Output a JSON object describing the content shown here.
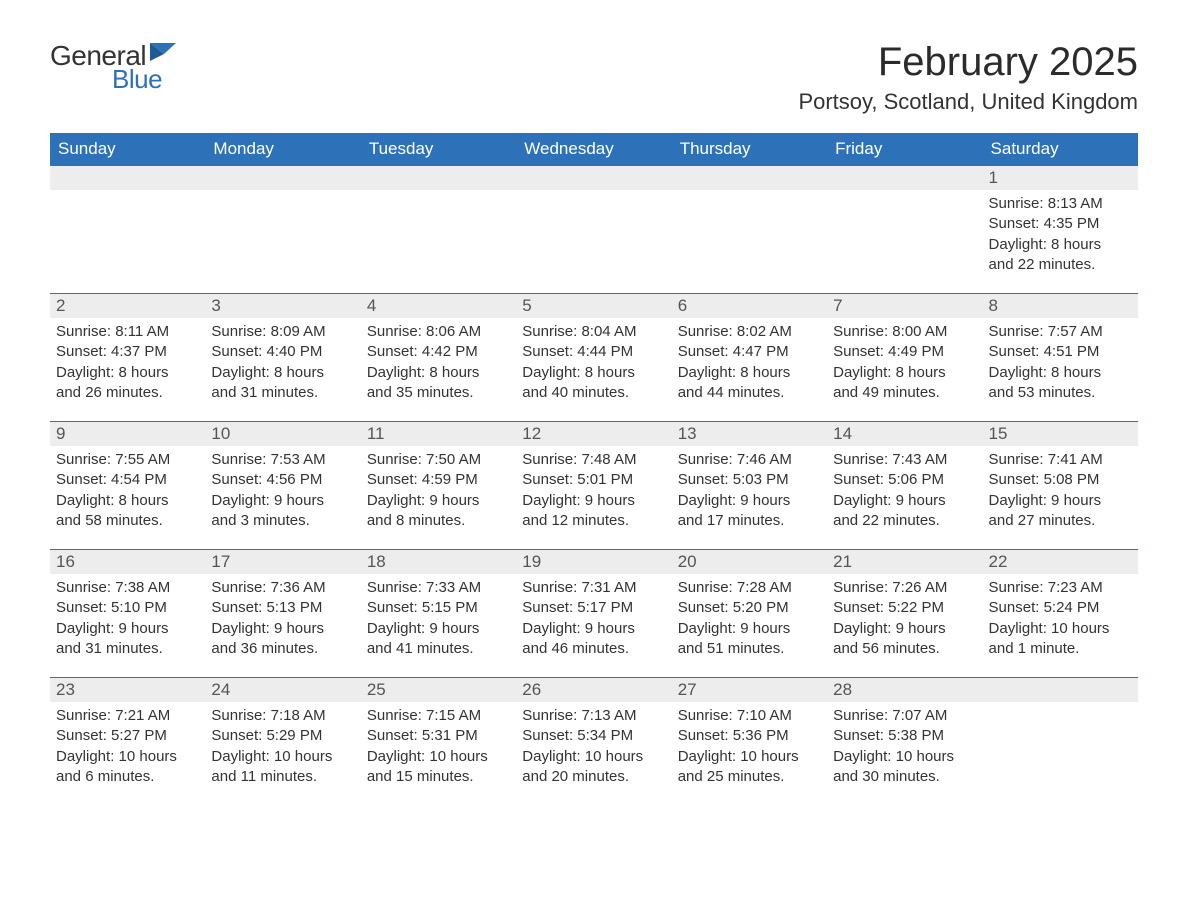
{
  "logo": {
    "general": "General",
    "blue": "Blue"
  },
  "title": "February 2025",
  "location": "Portsoy, Scotland, United Kingdom",
  "colors": {
    "header_blue": "#2d72b8",
    "band_grey": "#ededed",
    "text": "#333333",
    "bg": "#ffffff"
  },
  "day_headers": [
    "Sunday",
    "Monday",
    "Tuesday",
    "Wednesday",
    "Thursday",
    "Friday",
    "Saturday"
  ],
  "weeks": [
    [
      {
        "empty": true
      },
      {
        "empty": true
      },
      {
        "empty": true
      },
      {
        "empty": true
      },
      {
        "empty": true
      },
      {
        "empty": true
      },
      {
        "num": "1",
        "sunrise": "Sunrise: 8:13 AM",
        "sunset": "Sunset: 4:35 PM",
        "dl1": "Daylight: 8 hours",
        "dl2": "and 22 minutes."
      }
    ],
    [
      {
        "num": "2",
        "sunrise": "Sunrise: 8:11 AM",
        "sunset": "Sunset: 4:37 PM",
        "dl1": "Daylight: 8 hours",
        "dl2": "and 26 minutes."
      },
      {
        "num": "3",
        "sunrise": "Sunrise: 8:09 AM",
        "sunset": "Sunset: 4:40 PM",
        "dl1": "Daylight: 8 hours",
        "dl2": "and 31 minutes."
      },
      {
        "num": "4",
        "sunrise": "Sunrise: 8:06 AM",
        "sunset": "Sunset: 4:42 PM",
        "dl1": "Daylight: 8 hours",
        "dl2": "and 35 minutes."
      },
      {
        "num": "5",
        "sunrise": "Sunrise: 8:04 AM",
        "sunset": "Sunset: 4:44 PM",
        "dl1": "Daylight: 8 hours",
        "dl2": "and 40 minutes."
      },
      {
        "num": "6",
        "sunrise": "Sunrise: 8:02 AM",
        "sunset": "Sunset: 4:47 PM",
        "dl1": "Daylight: 8 hours",
        "dl2": "and 44 minutes."
      },
      {
        "num": "7",
        "sunrise": "Sunrise: 8:00 AM",
        "sunset": "Sunset: 4:49 PM",
        "dl1": "Daylight: 8 hours",
        "dl2": "and 49 minutes."
      },
      {
        "num": "8",
        "sunrise": "Sunrise: 7:57 AM",
        "sunset": "Sunset: 4:51 PM",
        "dl1": "Daylight: 8 hours",
        "dl2": "and 53 minutes."
      }
    ],
    [
      {
        "num": "9",
        "sunrise": "Sunrise: 7:55 AM",
        "sunset": "Sunset: 4:54 PM",
        "dl1": "Daylight: 8 hours",
        "dl2": "and 58 minutes."
      },
      {
        "num": "10",
        "sunrise": "Sunrise: 7:53 AM",
        "sunset": "Sunset: 4:56 PM",
        "dl1": "Daylight: 9 hours",
        "dl2": "and 3 minutes."
      },
      {
        "num": "11",
        "sunrise": "Sunrise: 7:50 AM",
        "sunset": "Sunset: 4:59 PM",
        "dl1": "Daylight: 9 hours",
        "dl2": "and 8 minutes."
      },
      {
        "num": "12",
        "sunrise": "Sunrise: 7:48 AM",
        "sunset": "Sunset: 5:01 PM",
        "dl1": "Daylight: 9 hours",
        "dl2": "and 12 minutes."
      },
      {
        "num": "13",
        "sunrise": "Sunrise: 7:46 AM",
        "sunset": "Sunset: 5:03 PM",
        "dl1": "Daylight: 9 hours",
        "dl2": "and 17 minutes."
      },
      {
        "num": "14",
        "sunrise": "Sunrise: 7:43 AM",
        "sunset": "Sunset: 5:06 PM",
        "dl1": "Daylight: 9 hours",
        "dl2": "and 22 minutes."
      },
      {
        "num": "15",
        "sunrise": "Sunrise: 7:41 AM",
        "sunset": "Sunset: 5:08 PM",
        "dl1": "Daylight: 9 hours",
        "dl2": "and 27 minutes."
      }
    ],
    [
      {
        "num": "16",
        "sunrise": "Sunrise: 7:38 AM",
        "sunset": "Sunset: 5:10 PM",
        "dl1": "Daylight: 9 hours",
        "dl2": "and 31 minutes."
      },
      {
        "num": "17",
        "sunrise": "Sunrise: 7:36 AM",
        "sunset": "Sunset: 5:13 PM",
        "dl1": "Daylight: 9 hours",
        "dl2": "and 36 minutes."
      },
      {
        "num": "18",
        "sunrise": "Sunrise: 7:33 AM",
        "sunset": "Sunset: 5:15 PM",
        "dl1": "Daylight: 9 hours",
        "dl2": "and 41 minutes."
      },
      {
        "num": "19",
        "sunrise": "Sunrise: 7:31 AM",
        "sunset": "Sunset: 5:17 PM",
        "dl1": "Daylight: 9 hours",
        "dl2": "and 46 minutes."
      },
      {
        "num": "20",
        "sunrise": "Sunrise: 7:28 AM",
        "sunset": "Sunset: 5:20 PM",
        "dl1": "Daylight: 9 hours",
        "dl2": "and 51 minutes."
      },
      {
        "num": "21",
        "sunrise": "Sunrise: 7:26 AM",
        "sunset": "Sunset: 5:22 PM",
        "dl1": "Daylight: 9 hours",
        "dl2": "and 56 minutes."
      },
      {
        "num": "22",
        "sunrise": "Sunrise: 7:23 AM",
        "sunset": "Sunset: 5:24 PM",
        "dl1": "Daylight: 10 hours",
        "dl2": "and 1 minute."
      }
    ],
    [
      {
        "num": "23",
        "sunrise": "Sunrise: 7:21 AM",
        "sunset": "Sunset: 5:27 PM",
        "dl1": "Daylight: 10 hours",
        "dl2": "and 6 minutes."
      },
      {
        "num": "24",
        "sunrise": "Sunrise: 7:18 AM",
        "sunset": "Sunset: 5:29 PM",
        "dl1": "Daylight: 10 hours",
        "dl2": "and 11 minutes."
      },
      {
        "num": "25",
        "sunrise": "Sunrise: 7:15 AM",
        "sunset": "Sunset: 5:31 PM",
        "dl1": "Daylight: 10 hours",
        "dl2": "and 15 minutes."
      },
      {
        "num": "26",
        "sunrise": "Sunrise: 7:13 AM",
        "sunset": "Sunset: 5:34 PM",
        "dl1": "Daylight: 10 hours",
        "dl2": "and 20 minutes."
      },
      {
        "num": "27",
        "sunrise": "Sunrise: 7:10 AM",
        "sunset": "Sunset: 5:36 PM",
        "dl1": "Daylight: 10 hours",
        "dl2": "and 25 minutes."
      },
      {
        "num": "28",
        "sunrise": "Sunrise: 7:07 AM",
        "sunset": "Sunset: 5:38 PM",
        "dl1": "Daylight: 10 hours",
        "dl2": "and 30 minutes."
      },
      {
        "empty": true
      }
    ]
  ]
}
